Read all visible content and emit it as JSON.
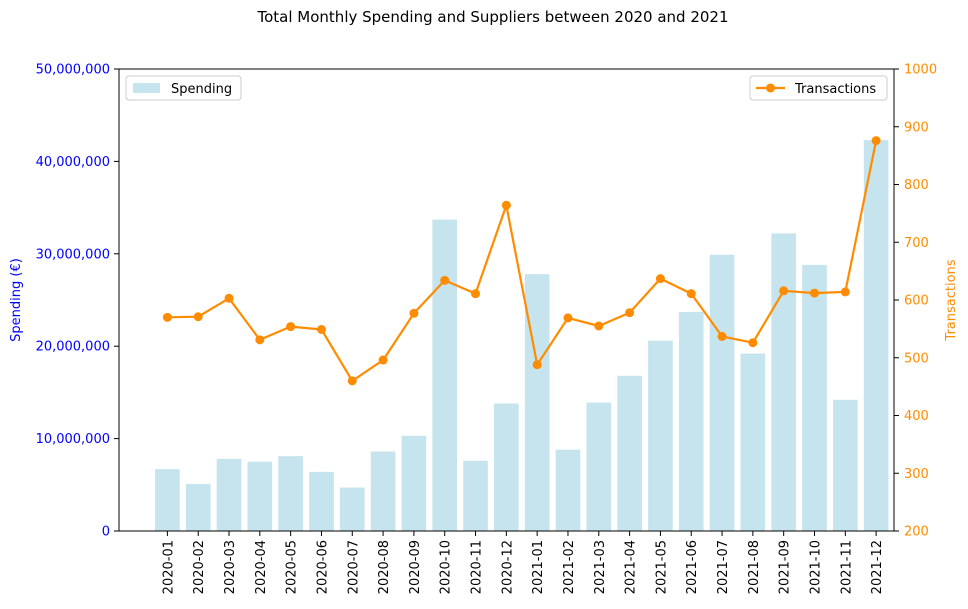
{
  "chart_data": {
    "type": "bar+line",
    "title": "Total Monthly Spending and Suppliers between 2020 and 2021",
    "categories": [
      "2020-01",
      "2020-02",
      "2020-03",
      "2020-04",
      "2020-05",
      "2020-06",
      "2020-07",
      "2020-08",
      "2020-09",
      "2020-10",
      "2020-11",
      "2020-12",
      "2021-01",
      "2021-02",
      "2021-03",
      "2021-04",
      "2021-05",
      "2021-06",
      "2021-07",
      "2021-08",
      "2021-09",
      "2021-10",
      "2021-11",
      "2021-12"
    ],
    "left_axis": {
      "label": "Spending (€)",
      "ylim": [
        0,
        50000000
      ],
      "ticks": [
        0,
        10000000,
        20000000,
        30000000,
        40000000,
        50000000
      ],
      "tick_labels": [
        "0",
        "10,000,000",
        "20,000,000",
        "30,000,000",
        "40,000,000",
        "50,000,000"
      ],
      "color": "#0000ff"
    },
    "right_axis": {
      "label": "Transactions",
      "ylim": [
        200,
        1000
      ],
      "ticks": [
        200,
        300,
        400,
        500,
        600,
        700,
        800,
        900,
        1000
      ],
      "tick_labels": [
        "200",
        "300",
        "400",
        "500",
        "600",
        "700",
        "800",
        "900",
        "1000"
      ],
      "color": "#ff8c00"
    },
    "series": [
      {
        "name": "Spending",
        "kind": "bar",
        "axis": "left",
        "color": "#add8e6",
        "values": [
          6700000,
          5100000,
          7800000,
          7500000,
          8100000,
          6400000,
          4700000,
          8600000,
          10300000,
          33700000,
          7600000,
          13800000,
          27800000,
          8800000,
          13900000,
          16800000,
          20600000,
          23700000,
          29900000,
          19200000,
          32200000,
          28800000,
          14200000,
          42300000
        ]
      },
      {
        "name": "Transactions",
        "kind": "line",
        "axis": "right",
        "color": "#ff8c00",
        "values": [
          570,
          571,
          603,
          531,
          554,
          549,
          460,
          496,
          577,
          634,
          611,
          764,
          488,
          569,
          555,
          578,
          637,
          611,
          537,
          526,
          616,
          612,
          614,
          876
        ]
      }
    ],
    "legends": [
      {
        "position": "upper-left",
        "label": "Spending"
      },
      {
        "position": "upper-right",
        "label": "Transactions"
      }
    ],
    "grid": false
  }
}
